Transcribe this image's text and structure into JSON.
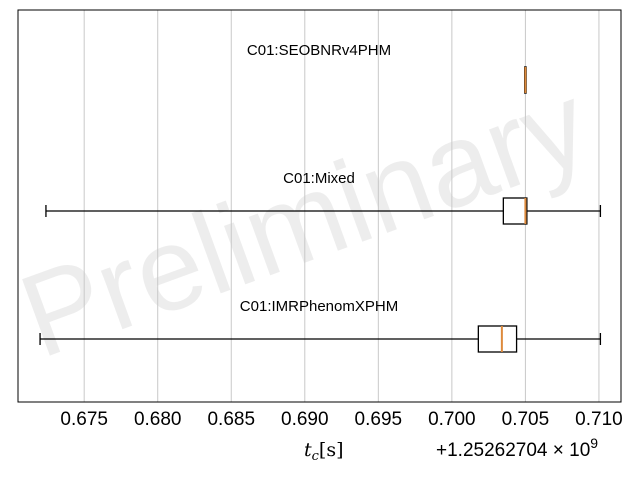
{
  "chart_data": {
    "type": "box",
    "orientation": "horizontal",
    "title": "",
    "xlabel": "t_c[s]",
    "xlabel_parts": {
      "symbol": "t",
      "subscript": "c",
      "unit": "[s]"
    },
    "offset_text": "+1.25262704 × 10",
    "offset_exponent": "9",
    "xlim": [
      0.6705,
      0.7115
    ],
    "xticks": [
      0.675,
      0.68,
      0.685,
      0.69,
      0.695,
      0.7,
      0.705,
      0.71
    ],
    "xtick_labels": [
      "0.675",
      "0.680",
      "0.685",
      "0.690",
      "0.695",
      "0.700",
      "0.705",
      "0.710"
    ],
    "grid": "vertical",
    "series": [
      {
        "name": "C01:SEOBNRv4PHM",
        "whisker_low": 0.70495,
        "q1": 0.70495,
        "median": 0.705,
        "q3": 0.70505,
        "whisker_high": 0.70505
      },
      {
        "name": "C01:Mixed",
        "whisker_low": 0.6724,
        "q1": 0.7035,
        "median": 0.705,
        "q3": 0.7051,
        "whisker_high": 0.7101
      },
      {
        "name": "C01:IMRPhenomXPHM",
        "whisker_low": 0.672,
        "q1": 0.7018,
        "median": 0.7034,
        "q3": 0.7044,
        "whisker_high": 0.7101
      }
    ],
    "watermark": "Preliminary",
    "colors": {
      "median": "#dd8a3c",
      "box": "#000000",
      "grid": "#c8c8c8"
    }
  }
}
